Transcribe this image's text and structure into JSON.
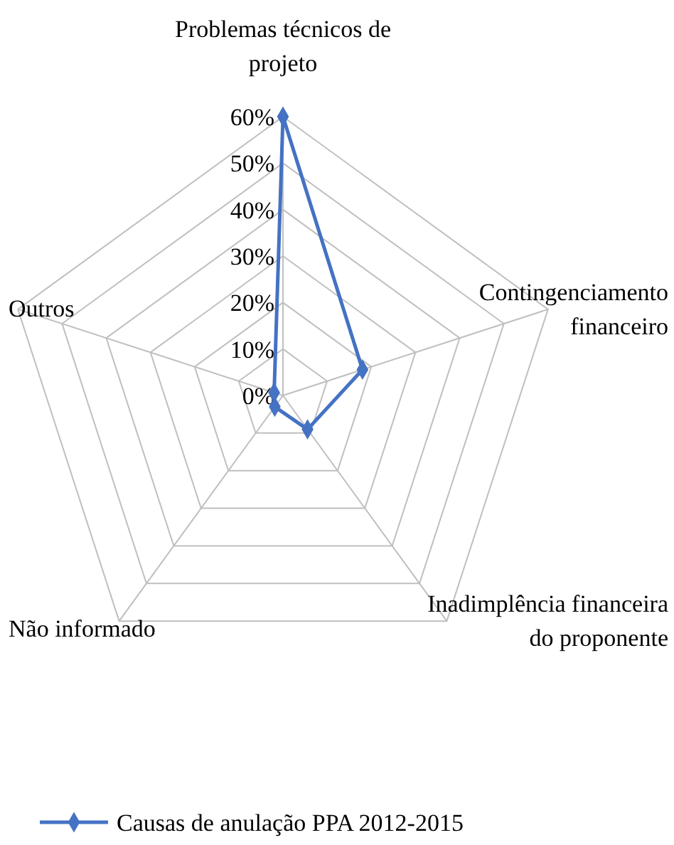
{
  "chart_data": {
    "type": "radar",
    "categories": [
      "Problemas técnicos de projeto",
      "Contingenciamento financeiro",
      "Inadimplência financeira do proponente",
      "Não informado",
      "Outros"
    ],
    "series": [
      {
        "name": "Causas de anulação PPA 2012-2015",
        "color": "#4472c4",
        "values": [
          60,
          18,
          9,
          3,
          2
        ]
      }
    ],
    "ylim": [
      0,
      60
    ],
    "yticks": [
      {
        "value": 0,
        "label": "0%"
      },
      {
        "value": 10,
        "label": "10%"
      },
      {
        "value": 20,
        "label": "20%"
      },
      {
        "value": 30,
        "label": "30%"
      },
      {
        "value": 40,
        "label": "40%"
      },
      {
        "value": 50,
        "label": "50%"
      },
      {
        "value": 60,
        "label": "60%"
      }
    ],
    "grid": true,
    "legend": "bottom",
    "marker": "diamond",
    "line_style": "solid"
  }
}
